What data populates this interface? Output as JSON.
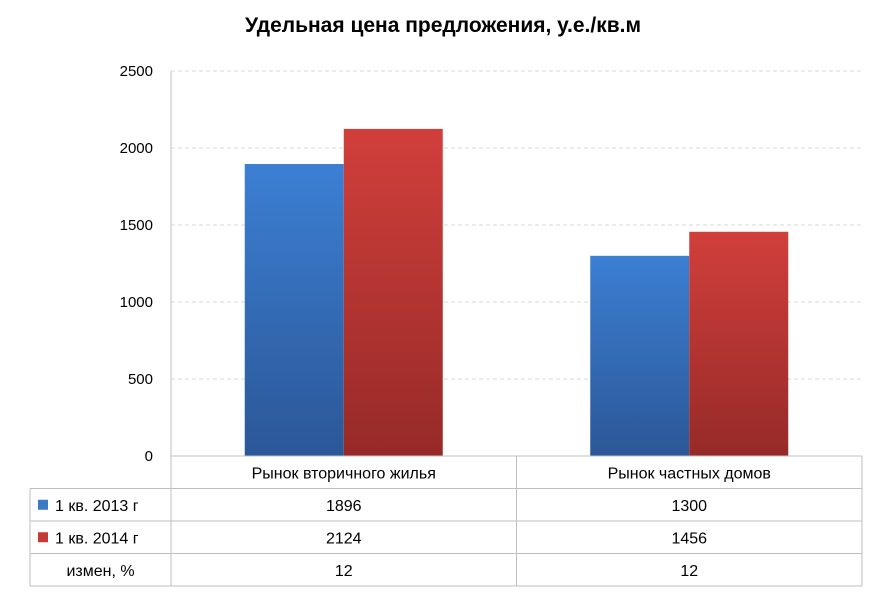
{
  "chart_data": {
    "type": "bar",
    "title": "Удельная цена предложения, у.е./кв.м",
    "categories": [
      "Рынок вторичного жилья",
      "Рынок частных домов"
    ],
    "series": [
      {
        "name": "1 кв. 2013 г",
        "values": [
          1896,
          1300
        ],
        "color": "#3a78c8"
      },
      {
        "name": "1 кв. 2014 г",
        "values": [
          2124,
          1456
        ],
        "color": "#c43a37"
      }
    ],
    "extra_row": {
      "name": "измен, %",
      "values": [
        12,
        12
      ]
    },
    "ylim": [
      0,
      2500
    ],
    "yticks": [
      0,
      500,
      1000,
      1500,
      2000,
      2500
    ],
    "grid": true,
    "legend": "data-table"
  }
}
